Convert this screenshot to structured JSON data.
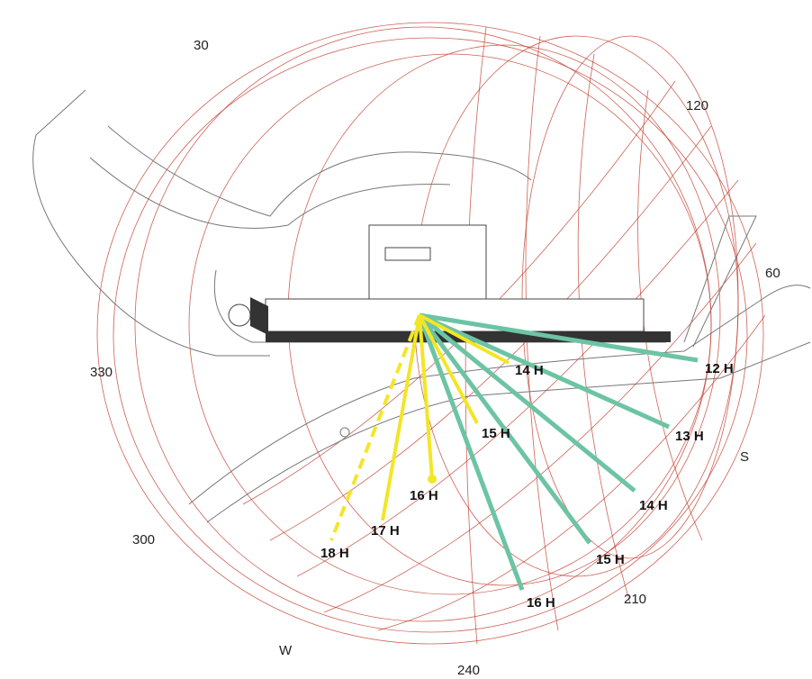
{
  "compass_labels": [
    "30",
    "120",
    "60",
    "330",
    "300",
    "S",
    "210",
    "W",
    "240"
  ],
  "teal_rays": [
    "12 H",
    "13 H",
    "14 H",
    "15 H",
    "16 H"
  ],
  "yellow_rays": [
    "14 H",
    "15 H",
    "16 H",
    "17 H",
    "18 H"
  ]
}
